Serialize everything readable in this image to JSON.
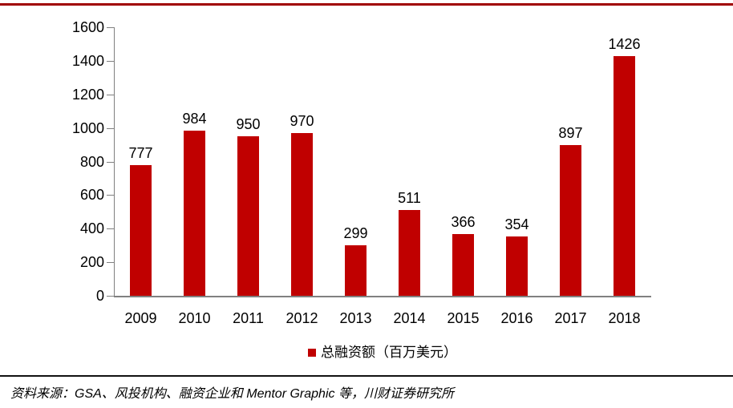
{
  "colors": {
    "top_rule": "#A00000",
    "axis": "#808080",
    "footer_rule": "#111111",
    "text": "#000000"
  },
  "chart_data": {
    "type": "bar",
    "title": "",
    "categories": [
      "2009",
      "2010",
      "2011",
      "2012",
      "2013",
      "2014",
      "2015",
      "2016",
      "2017",
      "2018"
    ],
    "values": [
      777,
      984,
      950,
      970,
      299,
      511,
      366,
      354,
      897,
      1426
    ],
    "bar_color": "#C00000",
    "value_labels_shown": true,
    "xlabel": "",
    "ylabel": "",
    "ylim": [
      0,
      1600
    ],
    "ytick_step": 200,
    "ytick_labels": [
      "0",
      "200",
      "400",
      "600",
      "800",
      "1000",
      "1200",
      "1400",
      "1600"
    ],
    "grid": false,
    "legend": {
      "position": "bottom",
      "marker_color": "#C00000",
      "label": "总融资额（百万美元）"
    }
  },
  "footer": {
    "source_text": "资料来源：GSA、风投机构、融资企业和 Mentor Graphic 等，川财证券研究所"
  }
}
